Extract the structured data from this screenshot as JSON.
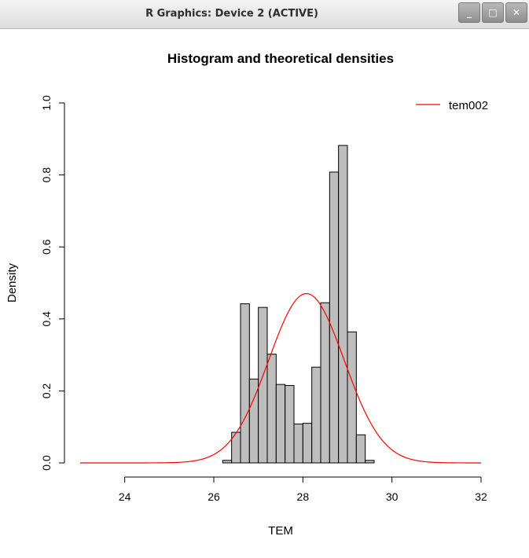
{
  "window": {
    "title": "R Graphics: Device 2 (ACTIVE)",
    "minimize_glyph": "_",
    "maximize_glyph": "□",
    "close_glyph": "✕"
  },
  "chart_data": {
    "type": "bar",
    "title": "Histogram and theoretical densities",
    "xlabel": "TEM",
    "ylabel": "Density",
    "xlim": [
      23,
      32
    ],
    "ylim": [
      0,
      1.0
    ],
    "xticks": [
      24,
      26,
      28,
      30,
      32
    ],
    "yticks": [
      "0.0",
      "0.2",
      "0.4",
      "0.6",
      "0.8",
      "1.0"
    ],
    "bar_color": "#bebebe",
    "bin_width": 0.2,
    "bins": [
      {
        "x0": 26.2,
        "x1": 26.4,
        "density": 0.007
      },
      {
        "x0": 26.4,
        "x1": 26.6,
        "density": 0.085
      },
      {
        "x0": 26.6,
        "x1": 26.8,
        "density": 0.442
      },
      {
        "x0": 26.8,
        "x1": 27.0,
        "density": 0.233
      },
      {
        "x0": 27.0,
        "x1": 27.2,
        "density": 0.432
      },
      {
        "x0": 27.2,
        "x1": 27.4,
        "density": 0.302
      },
      {
        "x0": 27.4,
        "x1": 27.6,
        "density": 0.218
      },
      {
        "x0": 27.6,
        "x1": 27.8,
        "density": 0.215
      },
      {
        "x0": 27.8,
        "x1": 28.0,
        "density": 0.108
      },
      {
        "x0": 28.0,
        "x1": 28.2,
        "density": 0.11
      },
      {
        "x0": 28.2,
        "x1": 28.4,
        "density": 0.266
      },
      {
        "x0": 28.4,
        "x1": 28.6,
        "density": 0.445
      },
      {
        "x0": 28.6,
        "x1": 28.8,
        "density": 0.808
      },
      {
        "x0": 28.8,
        "x1": 29.0,
        "density": 0.882
      },
      {
        "x0": 29.0,
        "x1": 29.2,
        "density": 0.364
      },
      {
        "x0": 29.2,
        "x1": 29.4,
        "density": 0.078
      },
      {
        "x0": 29.4,
        "x1": 29.6,
        "density": 0.007
      }
    ],
    "series": [
      {
        "name": "tem002",
        "color": "#ff0000",
        "distribution": "normal",
        "mean": 28.08,
        "sd": 0.848
      }
    ],
    "legend": {
      "position": "top-right",
      "entries": [
        "tem002"
      ]
    }
  }
}
